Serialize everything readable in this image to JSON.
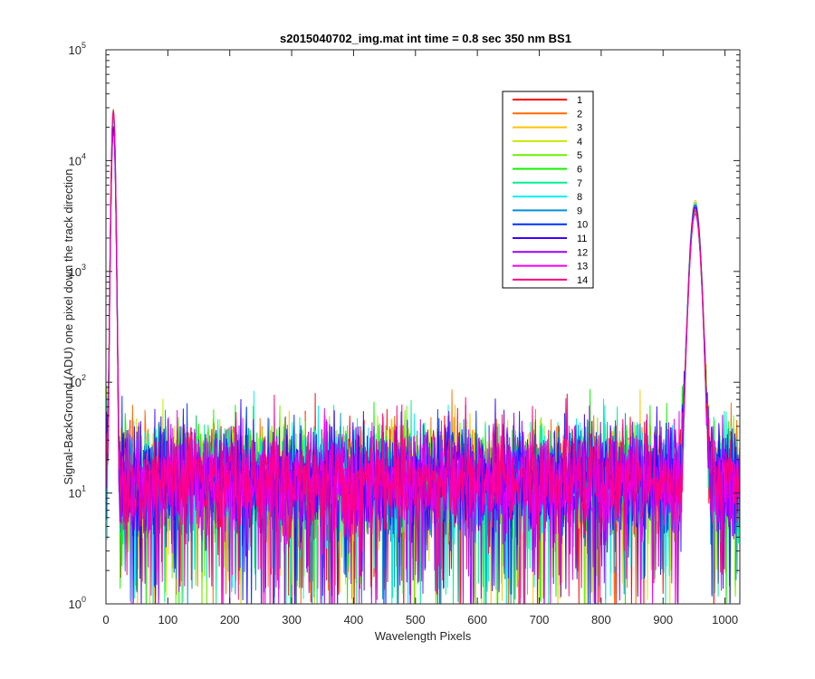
{
  "chart_data": {
    "type": "line",
    "title": "s2015040702_img.mat int time = 0.8 sec  350 nm BS1",
    "xlabel": "Wavelength Pixels",
    "ylabel": "Signal-BackGround (ADU) one pixel down the track direction",
    "xlim": [
      0,
      1024
    ],
    "ylim": [
      1,
      100000
    ],
    "yscale": "log",
    "x_ticks": [
      "0",
      "100",
      "200",
      "300",
      "400",
      "500",
      "600",
      "700",
      "800",
      "900",
      "1000"
    ],
    "y_ticks": [
      {
        "base": "10",
        "exp": "0"
      },
      {
        "base": "10",
        "exp": "1"
      },
      {
        "base": "10",
        "exp": "2"
      },
      {
        "base": "10",
        "exp": "3"
      },
      {
        "base": "10",
        "exp": "4"
      },
      {
        "base": "10",
        "exp": "5"
      }
    ],
    "grid": false,
    "legend_placement": "top-right",
    "peaks": [
      {
        "x": 12,
        "y": 25000,
        "width": 2.2
      },
      {
        "x": 952,
        "y": 3800,
        "width": 6
      }
    ],
    "noise_floor_median": 13,
    "series": [
      {
        "name": "1",
        "color": "#ff0000"
      },
      {
        "name": "2",
        "color": "#ff6a00"
      },
      {
        "name": "3",
        "color": "#ffc400"
      },
      {
        "name": "4",
        "color": "#c8e800"
      },
      {
        "name": "5",
        "color": "#6cf000"
      },
      {
        "name": "6",
        "color": "#12f000"
      },
      {
        "name": "7",
        "color": "#00f090"
      },
      {
        "name": "8",
        "color": "#00f0f0"
      },
      {
        "name": "9",
        "color": "#0090d8"
      },
      {
        "name": "10",
        "color": "#0030ff"
      },
      {
        "name": "11",
        "color": "#3a00ff"
      },
      {
        "name": "12",
        "color": "#9a00ff"
      },
      {
        "name": "13",
        "color": "#f000f0"
      },
      {
        "name": "14",
        "color": "#ff0080"
      }
    ]
  }
}
